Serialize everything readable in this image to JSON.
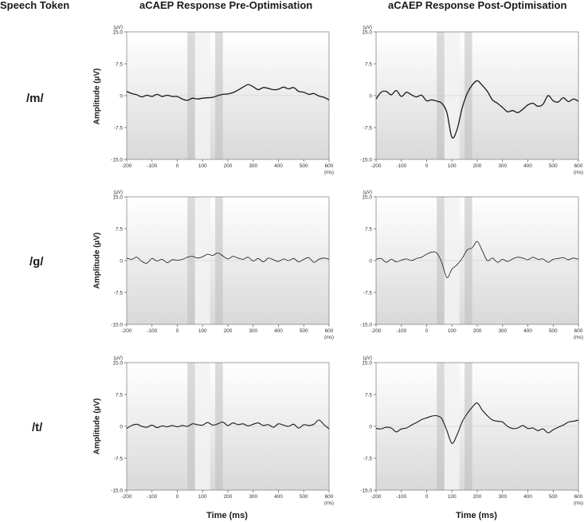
{
  "headers": {
    "speech_token": "Speech Token",
    "pre": "aCAEP Response Pre-Optimisation",
    "post": "aCAEP Response Post-Optimisation"
  },
  "row_labels": [
    "/m/",
    "/g/",
    "/t/"
  ],
  "axis": {
    "ylabel": "Amplitude (µV)",
    "xlabel": "Time (ms)",
    "y_unit": "(µV)",
    "x_unit": "(ms)"
  },
  "chart_data": [
    {
      "type": "line",
      "id": "m-pre",
      "title": "/m/ aCAEP Response Pre-Optimisation",
      "xlabel": "Time (ms)",
      "ylabel": "Amplitude (µV)",
      "xlim": [
        -200,
        600
      ],
      "ylim": [
        -15,
        15
      ],
      "xticks": [
        -200,
        -100,
        0,
        100,
        200,
        300,
        400,
        500,
        600
      ],
      "yticks": [
        15.0,
        7.5,
        0,
        -7.5,
        -15.0
      ],
      "ytick_labels": [
        "15.0",
        "7.5",
        "0",
        "-7.5",
        "-15.0"
      ],
      "shaded_windows_ms": [
        [
          40,
          70
        ],
        [
          150,
          180
        ]
      ],
      "band_ms": [
        70,
        130
      ],
      "x": [
        -200,
        -180,
        -160,
        -140,
        -120,
        -100,
        -80,
        -60,
        -40,
        -20,
        0,
        20,
        40,
        60,
        80,
        100,
        120,
        140,
        160,
        180,
        200,
        220,
        240,
        260,
        280,
        300,
        320,
        340,
        360,
        380,
        400,
        420,
        440,
        460,
        480,
        500,
        520,
        540,
        560,
        580,
        600
      ],
      "y": [
        1.0,
        0.5,
        0.2,
        -0.3,
        0.1,
        -0.2,
        0.3,
        -0.2,
        0.1,
        -0.2,
        -0.2,
        -0.8,
        -1.1,
        -0.6,
        -0.8,
        -0.6,
        -0.5,
        -0.4,
        0.0,
        0.3,
        0.4,
        0.7,
        1.3,
        2.0,
        2.6,
        2.1,
        1.4,
        1.9,
        1.7,
        1.4,
        1.5,
        2.0,
        1.6,
        1.9,
        1.0,
        0.8,
        0.3,
        0.5,
        -0.1,
        -0.4,
        -1.0
      ]
    },
    {
      "type": "line",
      "id": "m-post",
      "title": "/m/ aCAEP Response Post-Optimisation",
      "xlabel": "Time (ms)",
      "ylabel": "Amplitude (µV)",
      "xlim": [
        -200,
        600
      ],
      "ylim": [
        -15,
        15
      ],
      "xticks": [
        -200,
        -100,
        0,
        100,
        200,
        300,
        400,
        500,
        600
      ],
      "yticks": [
        15.0,
        7.5,
        0,
        -7.5,
        -15.0
      ],
      "ytick_labels": [
        "15.0",
        "7.5",
        "0",
        "-7.5",
        "-15.0"
      ],
      "shaded_windows_ms": [
        [
          40,
          70
        ],
        [
          150,
          180
        ]
      ],
      "band_ms": [
        70,
        130
      ],
      "x": [
        -200,
        -180,
        -160,
        -140,
        -120,
        -100,
        -80,
        -60,
        -40,
        -20,
        0,
        20,
        40,
        60,
        80,
        100,
        120,
        140,
        160,
        180,
        200,
        220,
        240,
        260,
        280,
        300,
        320,
        340,
        360,
        380,
        400,
        420,
        440,
        460,
        480,
        500,
        520,
        540,
        560,
        580,
        600
      ],
      "y": [
        -0.8,
        0.8,
        1.0,
        0.2,
        1.2,
        -0.2,
        0.8,
        0.2,
        -0.3,
        0.1,
        -1.2,
        -1.0,
        -1.3,
        -1.8,
        -4.0,
        -9.8,
        -8.0,
        -3.0,
        0.5,
        2.5,
        3.5,
        2.4,
        1.0,
        -1.0,
        -1.8,
        -2.8,
        -3.8,
        -3.5,
        -4.0,
        -3.2,
        -2.2,
        -1.8,
        -2.5,
        -2.0,
        0.0,
        -1.2,
        -1.5,
        -0.5,
        -1.4,
        -0.8,
        -1.3
      ]
    },
    {
      "type": "line",
      "id": "g-pre",
      "title": "/g/ aCAEP Response Pre-Optimisation",
      "xlabel": "Time (ms)",
      "ylabel": "Amplitude (µV)",
      "xlim": [
        -200,
        600
      ],
      "ylim": [
        -15,
        15
      ],
      "xticks": [
        -200,
        -100,
        0,
        100,
        200,
        300,
        400,
        500,
        600
      ],
      "yticks": [
        15.0,
        7.5,
        0,
        -7.5,
        -15.0
      ],
      "ytick_labels": [
        "15.0",
        "7.5",
        "0",
        "-7.5",
        "-15.0"
      ],
      "shaded_windows_ms": [
        [
          40,
          70
        ],
        [
          150,
          180
        ]
      ],
      "band_ms": [
        70,
        130
      ],
      "x": [
        -200,
        -180,
        -160,
        -140,
        -120,
        -100,
        -80,
        -60,
        -40,
        -20,
        0,
        20,
        40,
        60,
        80,
        100,
        120,
        140,
        160,
        180,
        200,
        220,
        240,
        260,
        280,
        300,
        320,
        340,
        360,
        380,
        400,
        420,
        440,
        460,
        480,
        500,
        520,
        540,
        560,
        580,
        600
      ],
      "y": [
        0.6,
        0.3,
        0.8,
        -0.2,
        -0.6,
        0.5,
        -0.1,
        0.3,
        -0.5,
        0.2,
        0.1,
        0.3,
        0.8,
        1.0,
        0.6,
        0.9,
        1.5,
        1.2,
        1.8,
        1.1,
        0.4,
        1.0,
        0.6,
        0.3,
        0.8,
        -0.1,
        0.5,
        -0.3,
        0.6,
        0.2,
        -0.2,
        0.4,
        0.0,
        0.5,
        -0.3,
        0.3,
        0.7,
        -0.4,
        0.3,
        0.6,
        0.3
      ]
    },
    {
      "type": "line",
      "id": "g-post",
      "title": "/g/ aCAEP Response Post-Optimisation",
      "xlabel": "Time (ms)",
      "ylabel": "Amplitude (µV)",
      "xlim": [
        -200,
        600
      ],
      "ylim": [
        -15,
        15
      ],
      "xticks": [
        -200,
        -100,
        0,
        100,
        200,
        300,
        400,
        500,
        600
      ],
      "yticks": [
        15.0,
        7.5,
        0,
        -7.5,
        -15.0
      ],
      "ytick_labels": [
        "15.0",
        "7.5",
        "0",
        "-7.5",
        "-15.0"
      ],
      "shaded_windows_ms": [
        [
          40,
          70
        ],
        [
          150,
          180
        ]
      ],
      "band_ms": [
        70,
        130
      ],
      "x": [
        -200,
        -180,
        -160,
        -140,
        -120,
        -100,
        -80,
        -60,
        -40,
        -20,
        0,
        20,
        40,
        60,
        80,
        100,
        120,
        140,
        160,
        180,
        200,
        220,
        240,
        260,
        280,
        300,
        320,
        340,
        360,
        380,
        400,
        420,
        440,
        460,
        480,
        500,
        520,
        540,
        560,
        580,
        600
      ],
      "y": [
        0.3,
        0.5,
        -0.4,
        0.3,
        -0.3,
        0.1,
        0.4,
        0.0,
        0.5,
        0.8,
        1.5,
        2.0,
        1.8,
        -0.5,
        -4.0,
        -2.0,
        -1.0,
        0.5,
        2.5,
        3.0,
        4.5,
        2.3,
        0.0,
        0.6,
        -0.4,
        0.3,
        -0.2,
        0.4,
        0.8,
        0.6,
        0.2,
        0.8,
        0.3,
        0.4,
        -0.4,
        0.3,
        0.5,
        0.7,
        0.2,
        0.6,
        0.3
      ]
    },
    {
      "type": "line",
      "id": "t-pre",
      "title": "/t/ aCAEP Response Pre-Optimisation",
      "xlabel": "Time (ms)",
      "ylabel": "Amplitude (µV)",
      "xlim": [
        -200,
        600
      ],
      "ylim": [
        -15,
        15
      ],
      "xticks": [
        -200,
        -100,
        0,
        100,
        200,
        300,
        400,
        500,
        600
      ],
      "yticks": [
        15.0,
        7.5,
        0,
        -7.5,
        -15.0
      ],
      "ytick_labels": [
        "15.0",
        "7.5",
        "0",
        "-7.5",
        "-15.0"
      ],
      "shaded_windows_ms": [
        [
          40,
          70
        ],
        [
          150,
          180
        ]
      ],
      "band_ms": [
        70,
        130
      ],
      "x": [
        -200,
        -180,
        -160,
        -140,
        -120,
        -100,
        -80,
        -60,
        -40,
        -20,
        0,
        20,
        40,
        60,
        80,
        100,
        120,
        140,
        160,
        180,
        200,
        220,
        240,
        260,
        280,
        300,
        320,
        340,
        360,
        380,
        400,
        420,
        440,
        460,
        480,
        500,
        520,
        540,
        560,
        580,
        600
      ],
      "y": [
        -0.5,
        0.2,
        0.5,
        0.0,
        -0.2,
        0.3,
        -0.3,
        0.1,
        -0.1,
        0.2,
        -0.1,
        0.2,
        0.0,
        0.6,
        0.4,
        0.3,
        0.9,
        0.3,
        0.6,
        1.0,
        0.2,
        0.8,
        0.4,
        0.6,
        0.1,
        0.5,
        0.8,
        0.2,
        0.4,
        -0.2,
        0.6,
        0.3,
        0.0,
        0.5,
        -0.4,
        0.4,
        0.2,
        0.5,
        1.5,
        0.4,
        -0.6
      ]
    },
    {
      "type": "line",
      "id": "t-post",
      "title": "/t/ aCAEP Response Post-Optimisation",
      "xlabel": "Time (ms)",
      "ylabel": "Amplitude (µV)",
      "xlim": [
        -200,
        600
      ],
      "ylim": [
        -15,
        15
      ],
      "xticks": [
        -200,
        -100,
        0,
        100,
        200,
        300,
        400,
        500,
        600
      ],
      "yticks": [
        15.0,
        7.5,
        0,
        -7.5,
        -15.0
      ],
      "ytick_labels": [
        "15.0",
        "7.5",
        "0",
        "-7.5",
        "-15.0"
      ],
      "shaded_windows_ms": [
        [
          40,
          70
        ],
        [
          150,
          180
        ]
      ],
      "band_ms": [
        70,
        130
      ],
      "x": [
        -200,
        -180,
        -160,
        -140,
        -120,
        -100,
        -80,
        -60,
        -40,
        -20,
        0,
        20,
        40,
        60,
        80,
        100,
        120,
        140,
        160,
        180,
        200,
        220,
        240,
        260,
        280,
        300,
        320,
        340,
        360,
        380,
        400,
        420,
        440,
        460,
        480,
        500,
        520,
        540,
        560,
        580,
        600
      ],
      "y": [
        -0.5,
        -0.6,
        -0.2,
        -0.4,
        -1.3,
        -0.6,
        -0.4,
        0.3,
        0.9,
        1.6,
        2.0,
        2.4,
        2.5,
        1.8,
        -1.0,
        -4.0,
        -2.0,
        1.0,
        3.0,
        4.5,
        5.5,
        3.8,
        2.5,
        1.5,
        1.2,
        1.0,
        0.0,
        -0.5,
        -0.4,
        0.2,
        -0.5,
        -0.4,
        -1.0,
        -0.6,
        -1.5,
        -0.8,
        -0.2,
        0.3,
        1.0,
        1.2,
        1.5
      ]
    }
  ]
}
